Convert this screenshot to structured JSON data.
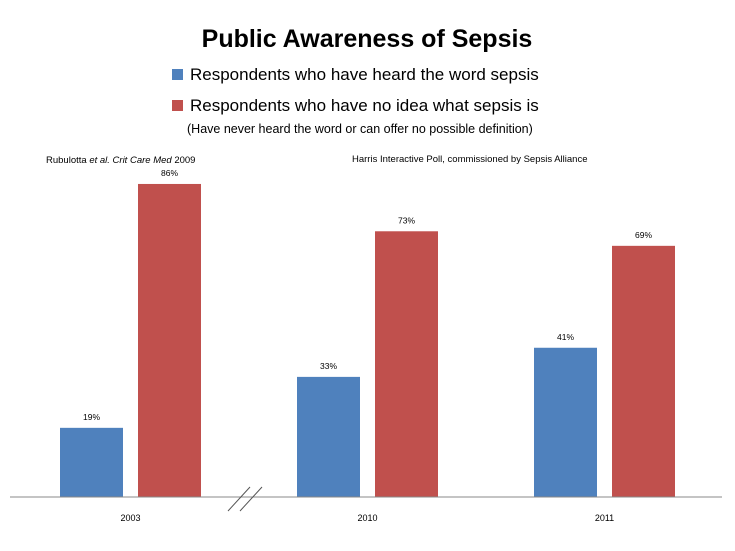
{
  "title": "Public Awareness of Sepsis",
  "legend": {
    "heard": "Respondents who have heard the word sepsis",
    "no_idea": "Respondents who have no idea what sepsis is",
    "note": "(Have never heard the word or can offer no possible definition)"
  },
  "sources": {
    "left_prefix": "Rubulotta ",
    "left_italic": "et al. Crit Care Med",
    "left_suffix": " 2009",
    "right": "Harris Interactive Poll, commissioned by Sepsis Alliance"
  },
  "colors": {
    "heard": "#4f81bd",
    "no_idea": "#c0504d"
  },
  "chart_data": {
    "type": "bar",
    "title": "Public Awareness of Sepsis",
    "categories": [
      "2003",
      "2010",
      "2011"
    ],
    "series": [
      {
        "name": "Respondents who have heard the word sepsis",
        "values": [
          19,
          33,
          41
        ],
        "labels": [
          "19%",
          "33%",
          "41%"
        ]
      },
      {
        "name": "Respondents who have no idea what sepsis is",
        "values": [
          86,
          73,
          69
        ],
        "labels": [
          "86%",
          "73%",
          "69%"
        ]
      }
    ],
    "xlabel": "",
    "ylabel": "",
    "ylim": [
      0,
      100
    ],
    "grid": false,
    "axis_break": "between 2003 and 2010"
  }
}
